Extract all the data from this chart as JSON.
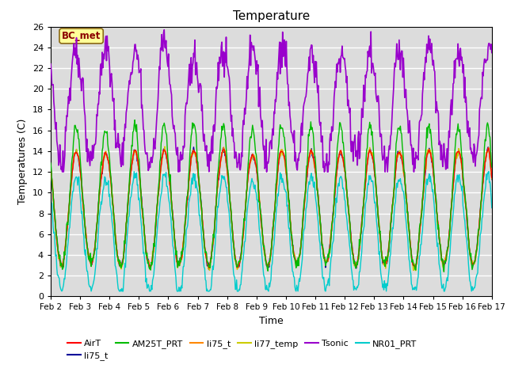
{
  "title": "Temperature",
  "xlabel": "Time",
  "ylabel": "Temperatures (C)",
  "ylim": [
    0,
    26
  ],
  "xlim": [
    0,
    15
  ],
  "x_tick_labels": [
    "Feb 2",
    "Feb 3",
    "Feb 4",
    "Feb 5",
    "Feb 6",
    "Feb 7",
    "Feb 8",
    "Feb 9",
    "Feb 10",
    "Feb 11",
    "Feb 12",
    "Feb 13",
    "Feb 14",
    "Feb 15",
    "Feb 16",
    "Feb 17"
  ],
  "annotation_text": "BC_met",
  "annotation_color": "#8B0000",
  "annotation_bg": "#FFFF99",
  "series_colors": {
    "AirT": "#FF0000",
    "li75_t_blue": "#000099",
    "AM25T_PRT": "#00BB00",
    "li75_t_orange": "#FF8800",
    "li77_temp": "#CCCC00",
    "Tsonic": "#9900CC",
    "NR01_PRT": "#00CCCC"
  },
  "background_color": "#DCDCDC",
  "grid_color": "#FFFFFF"
}
